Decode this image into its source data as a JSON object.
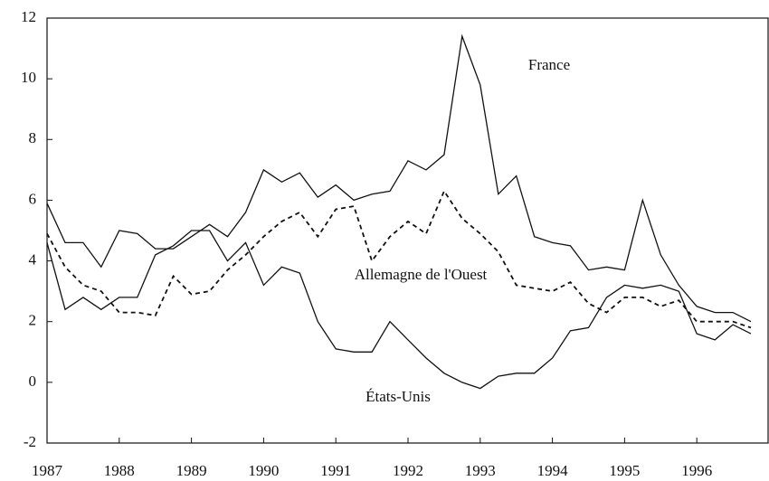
{
  "chart_data": {
    "type": "line",
    "x": [
      1987,
      1987.25,
      1987.5,
      1987.75,
      1988,
      1988.25,
      1988.5,
      1988.75,
      1989,
      1989.25,
      1989.5,
      1989.75,
      1990,
      1990.25,
      1990.5,
      1990.75,
      1991,
      1991.25,
      1991.5,
      1991.75,
      1992,
      1992.25,
      1992.5,
      1992.75,
      1993,
      1993.25,
      1993.5,
      1993.75,
      1994,
      1994.25,
      1994.5,
      1994.75,
      1995,
      1995.25,
      1995.5,
      1995.75,
      1996,
      1996.25,
      1996.5,
      1996.75
    ],
    "series": [
      {
        "name": "France",
        "color": "#111111",
        "dash": false,
        "values": [
          5.9,
          4.6,
          4.6,
          3.8,
          5.0,
          4.9,
          4.4,
          4.4,
          4.8,
          5.2,
          4.8,
          5.6,
          7.0,
          6.6,
          6.9,
          6.1,
          6.5,
          6.0,
          6.2,
          6.3,
          7.3,
          7.0,
          7.5,
          11.4,
          9.8,
          6.2,
          6.8,
          4.8,
          4.6,
          4.5,
          3.7,
          3.8,
          3.7,
          6.0,
          4.2,
          3.2,
          2.5,
          2.3,
          2.3,
          2.0
        ]
      },
      {
        "name": "Allemagne de l'Ouest",
        "color": "#111111",
        "dash": true,
        "values": [
          4.9,
          3.8,
          3.2,
          3.0,
          2.3,
          2.3,
          2.2,
          3.5,
          2.9,
          3.0,
          3.7,
          4.2,
          4.8,
          5.3,
          5.6,
          4.8,
          5.7,
          5.8,
          4.0,
          4.8,
          5.3,
          4.9,
          6.3,
          5.4,
          4.9,
          4.3,
          3.2,
          3.1,
          3.0,
          3.3,
          2.6,
          2.3,
          2.8,
          2.8,
          2.5,
          2.7,
          2.0,
          2.0,
          2.0,
          1.8
        ]
      },
      {
        "name": "États-Unis",
        "color": "#111111",
        "dash": false,
        "values": [
          4.6,
          2.4,
          2.8,
          2.4,
          2.8,
          2.8,
          4.2,
          4.5,
          5.0,
          5.0,
          4.0,
          4.6,
          3.2,
          3.8,
          3.6,
          2.0,
          1.1,
          1.0,
          1.0,
          2.0,
          1.4,
          0.8,
          0.3,
          0.0,
          -0.2,
          0.2,
          0.3,
          0.3,
          0.8,
          1.7,
          1.8,
          2.8,
          3.2,
          3.1,
          3.2,
          3.0,
          1.6,
          1.4,
          1.9,
          1.6
        ]
      }
    ],
    "xlim": [
      1987,
      1997
    ],
    "xticks": [
      1987,
      1988,
      1989,
      1990,
      1991,
      1992,
      1993,
      1994,
      1995,
      1996
    ],
    "ylim": [
      -2,
      12
    ],
    "yticks": [
      -2,
      0,
      2,
      4,
      6,
      8,
      10,
      12
    ],
    "grid": false
  }
}
